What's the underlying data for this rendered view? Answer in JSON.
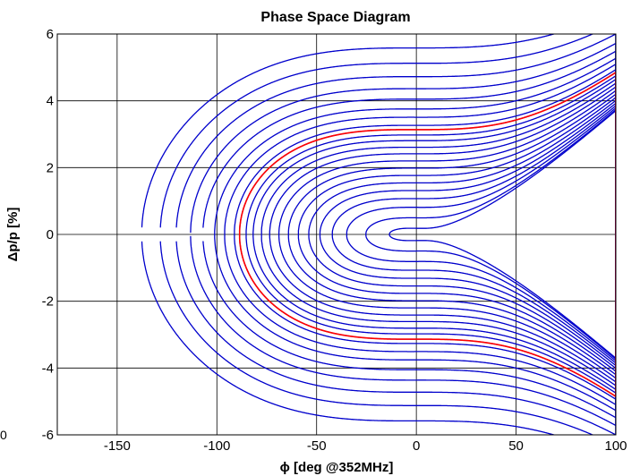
{
  "chart_data": {
    "type": "line",
    "title": "Phase Space Diagram",
    "xlabel": "ϕ [deg @352MHz]",
    "ylabel": "Δp/p [%]",
    "xlim": [
      -180,
      100
    ],
    "ylim": [
      -6,
      6
    ],
    "xticks": [
      -150,
      -100,
      -50,
      0,
      50,
      100
    ],
    "yticks": [
      -6,
      -4,
      -2,
      0,
      2,
      4,
      6
    ],
    "grid": true,
    "stable_phase_deg": 3,
    "unstable_phase_deg": -107,
    "separatrix_height_pct": 4.05,
    "series": [
      {
        "color": "#0000cc",
        "description_levels": [
          0.002,
          0.015,
          0.04,
          0.07,
          0.105,
          0.145,
          0.19,
          0.24,
          0.295,
          0.355,
          0.415,
          0.48,
          0.54,
          0.6,
          0.65,
          0.75,
          0.86,
          1.0,
          1.16,
          1.36,
          1.6,
          1.9
        ],
        "values": []
      },
      {
        "color": "#ff0000",
        "description_levels": [
          0.6
        ],
        "values": []
      }
    ]
  },
  "stray_text": "0"
}
